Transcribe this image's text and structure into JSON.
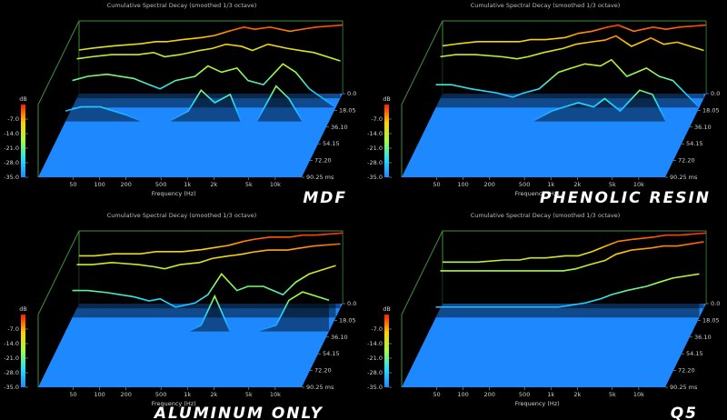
{
  "chart_data": [
    {
      "type": "waterfall",
      "title": "Cumulative Spectral Decay (smoothed 1/3 octave)",
      "label": "MDF",
      "x_label": "Frequency (Hz)",
      "y_label": "dB",
      "x": [
        20,
        30,
        50,
        100,
        150,
        200,
        300,
        500,
        700,
        1000,
        1500,
        2000,
        3000,
        5000,
        7000,
        10000,
        20000
      ],
      "xlim": [
        20,
        20000
      ],
      "log_x": true,
      "xticks": [
        50,
        100,
        200,
        500,
        {
          "value": 1000,
          "label": "1k"
        },
        {
          "value": 2000,
          "label": "2k"
        },
        {
          "value": 5000,
          "label": "5k"
        },
        {
          "value": 10000,
          "label": "10k"
        }
      ],
      "ylim": [
        -35,
        0
      ],
      "yticks": [
        {
          "value": -7,
          "label": "-7.0"
        },
        {
          "value": -14,
          "label": "-14.0"
        },
        {
          "value": -21,
          "label": "-21.0"
        },
        {
          "value": -28,
          "label": "-28.0"
        },
        {
          "value": -35,
          "label": "-35.0"
        }
      ],
      "tlim": [
        0,
        90.25
      ],
      "tticks": [
        {
          "value": 0,
          "label": "0.0"
        },
        18.05,
        {
          "value": 36.1,
          "label": "36.10"
        },
        54.15,
        {
          "value": 72.2,
          "label": "72.20"
        },
        {
          "value": 90.25,
          "label": "90.25 ms"
        }
      ],
      "slices": [
        {
          "time": 0,
          "values": [
            -14,
            -13,
            -12,
            -11,
            -10,
            -10,
            -9,
            -8,
            -7,
            -5,
            -3,
            -4,
            -3,
            -5,
            -4,
            -3,
            -2
          ]
        },
        {
          "time": 5,
          "values": [
            -16,
            -15,
            -14,
            -14,
            -13,
            -15,
            -14,
            -12,
            -11,
            -9,
            -10,
            -12,
            -9,
            -11,
            -12,
            -13,
            -17
          ]
        },
        {
          "time": 15,
          "values": [
            -22,
            -20,
            -19,
            -21,
            -24,
            -26,
            -22,
            -20,
            -15,
            -18,
            -16,
            -22,
            -24,
            -14,
            -18,
            -26,
            -35
          ]
        },
        {
          "time": 30,
          "values": [
            -30,
            -28,
            -28,
            -32,
            -35,
            -35,
            -35,
            -30,
            -20,
            -26,
            -22,
            -35,
            -35,
            -18,
            -24,
            -35,
            -35
          ]
        }
      ],
      "colormap": [
        "#ff1a00",
        "#ffd000",
        "#a0ff40",
        "#20e0ff",
        "#1e88ff"
      ],
      "floor_color": "#1e88ff",
      "wall_color": "#3f8f3f"
    },
    {
      "type": "waterfall",
      "title": "Cumulative Spectral Decay (smoothed 1/3 octave)",
      "label": "PHENOLIC RESIN",
      "x_label": "Frequency (Hz)",
      "y_label": "dB",
      "x": [
        20,
        30,
        50,
        100,
        150,
        200,
        300,
        500,
        700,
        1000,
        1500,
        2000,
        3000,
        5000,
        7000,
        10000,
        20000
      ],
      "xlim": [
        20,
        20000
      ],
      "log_x": true,
      "xticks": [
        50,
        100,
        200,
        500,
        {
          "value": 1000,
          "label": "1k"
        },
        {
          "value": 2000,
          "label": "2k"
        },
        {
          "value": 5000,
          "label": "5k"
        },
        {
          "value": 10000,
          "label": "10k"
        }
      ],
      "ylim": [
        -35,
        0
      ],
      "yticks": [
        {
          "value": -7,
          "label": "-7.0"
        },
        {
          "value": -14,
          "label": "-14.0"
        },
        {
          "value": -21,
          "label": "-21.0"
        },
        {
          "value": -28,
          "label": "-28.0"
        },
        {
          "value": -35,
          "label": "-35.0"
        }
      ],
      "tlim": [
        0,
        90.25
      ],
      "tticks": [
        {
          "value": 0,
          "label": "0.0"
        },
        18.05,
        {
          "value": 36.1,
          "label": "36.10"
        },
        54.15,
        {
          "value": 72.2,
          "label": "72.20"
        },
        {
          "value": 90.25,
          "label": "90.25 ms"
        }
      ],
      "slices": [
        {
          "time": 0,
          "values": [
            -12,
            -11,
            -10,
            -10,
            -10,
            -9,
            -9,
            -8,
            -6,
            -5,
            -3,
            -2,
            -5,
            -3,
            -4,
            -3,
            -2
          ]
        },
        {
          "time": 5,
          "values": [
            -15,
            -14,
            -14,
            -15,
            -16,
            -15,
            -13,
            -11,
            -9,
            -8,
            -7,
            -5,
            -10,
            -6,
            -9,
            -8,
            -12
          ]
        },
        {
          "time": 15,
          "values": [
            -24,
            -24,
            -26,
            -28,
            -30,
            -28,
            -26,
            -18,
            -16,
            -14,
            -15,
            -12,
            -20,
            -16,
            -20,
            -22,
            -35
          ]
        },
        {
          "time": 30,
          "values": [
            -35,
            -35,
            -35,
            -35,
            -35,
            -35,
            -35,
            -30,
            -28,
            -26,
            -28,
            -24,
            -30,
            -20,
            -22,
            -35,
            -35
          ]
        }
      ],
      "colormap": [
        "#ff1a00",
        "#ffd000",
        "#a0ff40",
        "#20e0ff",
        "#1e88ff"
      ],
      "floor_color": "#1e88ff",
      "wall_color": "#3f8f3f"
    },
    {
      "type": "waterfall",
      "title": "Cumulative Spectral Decay (smoothed 1/3 octave)",
      "label": "ALUMINUM ONLY",
      "x_label": "Frequency (Hz)",
      "y_label": "dB",
      "x": [
        20,
        30,
        50,
        100,
        150,
        200,
        300,
        500,
        700,
        1000,
        1500,
        2000,
        3000,
        5000,
        7000,
        10000,
        20000
      ],
      "xlim": [
        20,
        20000
      ],
      "log_x": true,
      "xticks": [
        50,
        100,
        200,
        500,
        {
          "value": 1000,
          "label": "1k"
        },
        {
          "value": 2000,
          "label": "2k"
        },
        {
          "value": 5000,
          "label": "5k"
        },
        {
          "value": 10000,
          "label": "10k"
        }
      ],
      "ylim": [
        -35,
        0
      ],
      "yticks": [
        {
          "value": -7,
          "label": "-7.0"
        },
        {
          "value": -14,
          "label": "-14.0"
        },
        {
          "value": -21,
          "label": "-21.0"
        },
        {
          "value": -28,
          "label": "-28.0"
        },
        {
          "value": -35,
          "label": "-35.0"
        }
      ],
      "tlim": [
        0,
        90.25
      ],
      "tticks": [
        {
          "value": 0,
          "label": "0.0"
        },
        18.05,
        {
          "value": 36.1,
          "label": "36.10"
        },
        54.15,
        {
          "value": 72.2,
          "label": "72.20"
        },
        {
          "value": 90.25,
          "label": "90.25 ms"
        }
      ],
      "slices": [
        {
          "time": 0,
          "values": [
            -12,
            -12,
            -11,
            -11,
            -10,
            -10,
            -10,
            -9,
            -8,
            -7,
            -5,
            -4,
            -3,
            -3,
            -2,
            -2,
            -1
          ]
        },
        {
          "time": 5,
          "values": [
            -14,
            -14,
            -13,
            -14,
            -15,
            -16,
            -14,
            -13,
            -11,
            -10,
            -9,
            -8,
            -7,
            -7,
            -6,
            -5,
            -4
          ]
        },
        {
          "time": 15,
          "values": [
            -22,
            -22,
            -23,
            -25,
            -27,
            -26,
            -30,
            -28,
            -24,
            -14,
            -22,
            -20,
            -20,
            -24,
            -18,
            -14,
            -10
          ]
        },
        {
          "time": 30,
          "values": [
            -35,
            -35,
            -35,
            -35,
            -35,
            -35,
            -35,
            -35,
            -32,
            -18,
            -35,
            -35,
            -35,
            -32,
            -20,
            -16,
            -20
          ]
        }
      ],
      "colormap": [
        "#ff1a00",
        "#ffd000",
        "#a0ff40",
        "#20e0ff",
        "#1e88ff"
      ],
      "floor_color": "#1e88ff",
      "wall_color": "#3f8f3f"
    },
    {
      "type": "waterfall",
      "title": "Cumulative Spectral Decay (smoothed 1/3 octave)",
      "label": "Q5",
      "x_label": "Frequency (Hz)",
      "y_label": "dB",
      "x": [
        20,
        30,
        50,
        100,
        150,
        200,
        300,
        500,
        700,
        1000,
        1500,
        2000,
        3000,
        5000,
        7000,
        10000,
        20000
      ],
      "xlim": [
        20,
        20000
      ],
      "log_x": true,
      "xticks": [
        50,
        100,
        200,
        500,
        {
          "value": 1000,
          "label": "1k"
        },
        {
          "value": 2000,
          "label": "2k"
        },
        {
          "value": 5000,
          "label": "5k"
        },
        {
          "value": 10000,
          "label": "10k"
        }
      ],
      "ylim": [
        -35,
        0
      ],
      "yticks": [
        {
          "value": -7,
          "label": "-7.0"
        },
        {
          "value": -14,
          "label": "-14.0"
        },
        {
          "value": -21,
          "label": "-21.0"
        },
        {
          "value": -28,
          "label": "-28.0"
        },
        {
          "value": -35,
          "label": "-35.0"
        }
      ],
      "tlim": [
        0,
        90.25
      ],
      "tticks": [
        {
          "value": 0,
          "label": "0.0"
        },
        18.05,
        {
          "value": 36.1,
          "label": "36.10"
        },
        54.15,
        {
          "value": 72.2,
          "label": "72.20"
        },
        {
          "value": 90.25,
          "label": "90.25 ms"
        }
      ],
      "slices": [
        {
          "time": 0,
          "values": [
            -15,
            -15,
            -15,
            -14,
            -14,
            -13,
            -13,
            -12,
            -12,
            -10,
            -7,
            -5,
            -4,
            -3,
            -2,
            -2,
            -1
          ]
        },
        {
          "time": 5,
          "values": [
            -17,
            -17,
            -17,
            -17,
            -17,
            -17,
            -17,
            -17,
            -16,
            -14,
            -12,
            -9,
            -7,
            -6,
            -5,
            -5,
            -3
          ]
        },
        {
          "time": 15,
          "values": [
            -30,
            -30,
            -30,
            -30,
            -30,
            -30,
            -30,
            -30,
            -29,
            -28,
            -26,
            -24,
            -22,
            -20,
            -18,
            -16,
            -14
          ]
        },
        {
          "time": 30,
          "values": [
            -35,
            -35,
            -35,
            -35,
            -35,
            -35,
            -35,
            -35,
            -35,
            -35,
            -35,
            -35,
            -35,
            -35,
            -35,
            -35,
            -35
          ]
        }
      ],
      "colormap": [
        "#ff1a00",
        "#ffd000",
        "#a0ff40",
        "#20e0ff",
        "#1e88ff"
      ],
      "floor_color": "#1e88ff",
      "wall_color": "#3f8f3f"
    }
  ]
}
